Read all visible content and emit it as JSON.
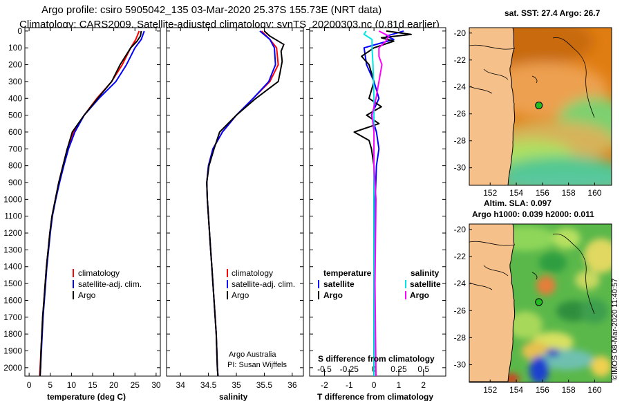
{
  "header": {
    "line1": "Argo profile: csiro 5905042_135 03-Mar-2020 25.37S 155.73E (NRT data)",
    "line2": "Climatology: CARS2009. Satellite-adjusted climatology: synTS_20200303.nc (0.81d earlier)"
  },
  "colors": {
    "climatology": "#ff0000",
    "satellite": "#0000ff",
    "argo": "#000000",
    "sat_sal": "#00e5e5",
    "argo_sal": "#ff00ff",
    "land": "#f5c08a",
    "coast": "#000000"
  },
  "depth_ticks": [
    "0",
    "100",
    "200",
    "300",
    "400",
    "500",
    "600",
    "700",
    "800",
    "900",
    "1000",
    "1100",
    "1200",
    "1300",
    "1400",
    "1500",
    "1600",
    "1700",
    "1800",
    "1900",
    "2000"
  ],
  "chart_data": [
    {
      "type": "line",
      "name": "temperature",
      "xlabel": "temperature (deg C)",
      "xlim": [
        -1,
        31
      ],
      "xticks": [
        "0",
        "5",
        "10",
        "15",
        "20",
        "25",
        "30"
      ],
      "ylim": [
        2050,
        -20
      ],
      "ylabel": "",
      "series": [
        {
          "name": "climatology",
          "points": [
            [
              26.0,
              0
            ],
            [
              25.2,
              50
            ],
            [
              24.0,
              100
            ],
            [
              22.0,
              200
            ],
            [
              19.5,
              300
            ],
            [
              16.0,
              400
            ],
            [
              13.0,
              500
            ],
            [
              10.5,
              600
            ],
            [
              9.0,
              700
            ],
            [
              8.0,
              800
            ],
            [
              7.0,
              900
            ],
            [
              6.2,
              1000
            ],
            [
              5.4,
              1100
            ],
            [
              4.9,
              1200
            ],
            [
              4.5,
              1300
            ],
            [
              4.1,
              1400
            ],
            [
              3.8,
              1500
            ],
            [
              3.5,
              1600
            ],
            [
              3.2,
              1700
            ],
            [
              3.0,
              1800
            ],
            [
              2.8,
              1900
            ],
            [
              2.6,
              2000
            ],
            [
              2.5,
              2050
            ]
          ]
        },
        {
          "name": "satellite-adj. clim.",
          "points": [
            [
              27.2,
              0
            ],
            [
              26.5,
              50
            ],
            [
              25.0,
              100
            ],
            [
              23.0,
              200
            ],
            [
              20.5,
              300
            ],
            [
              16.5,
              400
            ],
            [
              13.0,
              500
            ],
            [
              10.8,
              600
            ],
            [
              9.3,
              700
            ],
            [
              8.2,
              800
            ],
            [
              7.2,
              900
            ],
            [
              6.3,
              1000
            ],
            [
              5.5,
              1100
            ],
            [
              5.0,
              1200
            ],
            [
              4.6,
              1300
            ],
            [
              4.2,
              1400
            ],
            [
              3.9,
              1500
            ],
            [
              3.6,
              1600
            ],
            [
              3.3,
              1700
            ],
            [
              3.1,
              1800
            ],
            [
              2.9,
              1900
            ],
            [
              2.7,
              2000
            ],
            [
              2.6,
              2050
            ]
          ]
        },
        {
          "name": "Argo",
          "points": [
            [
              26.5,
              0
            ],
            [
              26.3,
              30
            ],
            [
              25.5,
              60
            ],
            [
              24.0,
              100
            ],
            [
              21.5,
              200
            ],
            [
              19.5,
              300
            ],
            [
              16.2,
              400
            ],
            [
              13.0,
              500
            ],
            [
              10.2,
              600
            ],
            [
              9.0,
              700
            ],
            [
              8.0,
              800
            ],
            [
              7.0,
              900
            ],
            [
              6.2,
              1000
            ],
            [
              5.4,
              1100
            ],
            [
              4.9,
              1200
            ],
            [
              4.5,
              1300
            ],
            [
              4.1,
              1400
            ],
            [
              3.8,
              1500
            ],
            [
              3.5,
              1600
            ],
            [
              3.2,
              1700
            ],
            [
              3.0,
              1800
            ],
            [
              2.8,
              1900
            ],
            [
              2.7,
              2000
            ],
            [
              2.6,
              2050
            ]
          ]
        }
      ],
      "legend": [
        "climatology",
        "satellite-adj. clim.",
        "Argo"
      ]
    },
    {
      "type": "line",
      "name": "salinity",
      "xlabel": "salinity",
      "xlim": [
        33.75,
        36.2
      ],
      "xticks": [
        "34",
        "34.5",
        "35",
        "35.5",
        "36"
      ],
      "ylim": [
        2050,
        -20
      ],
      "series": [
        {
          "name": "climatology",
          "points": [
            [
              35.45,
              0
            ],
            [
              35.6,
              50
            ],
            [
              35.72,
              100
            ],
            [
              35.75,
              200
            ],
            [
              35.6,
              300
            ],
            [
              35.3,
              400
            ],
            [
              35.0,
              500
            ],
            [
              34.75,
              600
            ],
            [
              34.58,
              700
            ],
            [
              34.5,
              800
            ],
            [
              34.47,
              900
            ],
            [
              34.48,
              1000
            ],
            [
              34.5,
              1100
            ],
            [
              34.52,
              1200
            ],
            [
              34.54,
              1300
            ],
            [
              34.56,
              1400
            ],
            [
              34.58,
              1500
            ],
            [
              34.6,
              1600
            ],
            [
              34.62,
              1700
            ],
            [
              34.64,
              1800
            ],
            [
              34.65,
              1900
            ],
            [
              34.66,
              2000
            ],
            [
              34.67,
              2050
            ]
          ]
        },
        {
          "name": "satellite-adj. clim.",
          "points": [
            [
              35.42,
              0
            ],
            [
              35.6,
              50
            ],
            [
              35.68,
              100
            ],
            [
              35.7,
              200
            ],
            [
              35.58,
              300
            ],
            [
              35.3,
              400
            ],
            [
              35.0,
              500
            ],
            [
              34.75,
              600
            ],
            [
              34.58,
              700
            ],
            [
              34.5,
              800
            ],
            [
              34.47,
              900
            ],
            [
              34.48,
              1000
            ],
            [
              34.5,
              1100
            ],
            [
              34.52,
              1200
            ],
            [
              34.54,
              1300
            ],
            [
              34.56,
              1400
            ],
            [
              34.58,
              1500
            ],
            [
              34.6,
              1600
            ],
            [
              34.62,
              1700
            ],
            [
              34.64,
              1800
            ],
            [
              34.65,
              1900
            ],
            [
              34.66,
              2000
            ],
            [
              34.67,
              2050
            ]
          ]
        },
        {
          "name": "Argo",
          "points": [
            [
              35.5,
              0
            ],
            [
              35.6,
              30
            ],
            [
              35.85,
              80
            ],
            [
              35.8,
              120
            ],
            [
              35.82,
              180
            ],
            [
              35.78,
              250
            ],
            [
              35.75,
              300
            ],
            [
              35.35,
              400
            ],
            [
              35.0,
              500
            ],
            [
              34.7,
              600
            ],
            [
              34.6,
              700
            ],
            [
              34.51,
              800
            ],
            [
              34.47,
              900
            ],
            [
              34.48,
              1000
            ],
            [
              34.5,
              1100
            ],
            [
              34.52,
              1200
            ],
            [
              34.54,
              1300
            ],
            [
              34.56,
              1400
            ],
            [
              34.58,
              1500
            ],
            [
              34.6,
              1600
            ],
            [
              34.62,
              1700
            ],
            [
              34.64,
              1800
            ],
            [
              34.65,
              1900
            ],
            [
              34.66,
              2000
            ],
            [
              34.67,
              2050
            ]
          ]
        }
      ],
      "legend": [
        "climatology",
        "satellite-adj. clim.",
        "Argo"
      ],
      "annotation": [
        "Argo Australia",
        "PI: Susan Wijffels"
      ]
    },
    {
      "type": "line",
      "name": "difference",
      "xlabel": "T difference from climatology",
      "xlim": [
        -2.6,
        2.9
      ],
      "xticks": [
        "-2",
        "-1",
        "0",
        "1",
        "2"
      ],
      "top_xlabel": "S difference from climatology",
      "top_xlim": [
        -0.65,
        0.725
      ],
      "top_xticks": [
        "-0.5",
        "-0.25",
        "0",
        "0.25",
        "0.5"
      ],
      "ylim": [
        2050,
        -20
      ],
      "series": [
        {
          "name": "temperature satellite",
          "axis": "T",
          "points": [
            [
              1.2,
              0
            ],
            [
              0.5,
              30
            ],
            [
              0.8,
              50
            ],
            [
              -0.4,
              100
            ],
            [
              -0.3,
              200
            ],
            [
              0.0,
              300
            ],
            [
              0.2,
              400
            ],
            [
              -0.1,
              500
            ],
            [
              0.1,
              600
            ],
            [
              0.2,
              700
            ],
            [
              0.1,
              800
            ],
            [
              0.05,
              1000
            ],
            [
              0.0,
              1500
            ],
            [
              0.0,
              2050
            ]
          ]
        },
        {
          "name": "temperature Argo",
          "axis": "T",
          "points": [
            [
              0.5,
              0
            ],
            [
              1.5,
              20
            ],
            [
              0.3,
              40
            ],
            [
              0.8,
              60
            ],
            [
              0.0,
              100
            ],
            [
              -0.5,
              150
            ],
            [
              -0.2,
              200
            ],
            [
              0.0,
              300
            ],
            [
              -0.2,
              400
            ],
            [
              0.3,
              450
            ],
            [
              -0.3,
              500
            ],
            [
              0.2,
              550
            ],
            [
              -0.8,
              600
            ],
            [
              -0.2,
              650
            ],
            [
              -0.1,
              700
            ],
            [
              0.0,
              800
            ],
            [
              0.0,
              1000
            ],
            [
              0.0,
              1500
            ],
            [
              0.0,
              2050
            ]
          ]
        },
        {
          "name": "salinity satellite",
          "axis": "S",
          "points": [
            [
              -0.08,
              0
            ],
            [
              -0.1,
              20
            ],
            [
              -0.02,
              50
            ],
            [
              -0.02,
              100
            ],
            [
              -0.01,
              200
            ],
            [
              0.0,
              400
            ],
            [
              0.0,
              800
            ],
            [
              0.0,
              1500
            ],
            [
              0.0,
              2050
            ]
          ]
        },
        {
          "name": "salinity Argo",
          "axis": "S",
          "points": [
            [
              0.05,
              0
            ],
            [
              0.15,
              30
            ],
            [
              0.12,
              60
            ],
            [
              0.05,
              100
            ],
            [
              0.05,
              150
            ],
            [
              0.08,
              200
            ],
            [
              0.05,
              300
            ],
            [
              0.02,
              400
            ],
            [
              -0.02,
              500
            ],
            [
              0.0,
              600
            ],
            [
              0.0,
              800
            ],
            [
              0.02,
              1000
            ],
            [
              0.01,
              1500
            ],
            [
              0.02,
              2050
            ]
          ]
        }
      ],
      "legend_temperature_title": "temperature",
      "legend_salinity_title": "salinity",
      "legend_items": [
        "satellite",
        "Argo"
      ]
    }
  ],
  "maps": {
    "sst": {
      "title": "sat. SST: 27.4 Argo: 26.7",
      "lat_ticks": [
        "-20",
        "-22",
        "-24",
        "-26",
        "-28",
        "-30"
      ],
      "lon_ticks": [
        "152",
        "154",
        "156",
        "158",
        "160"
      ],
      "float_lon": 155.73,
      "float_lat": -25.37,
      "lon_range": [
        150.4,
        161.3
      ],
      "lat_range": [
        -31.3,
        -19.6
      ]
    },
    "sla": {
      "title_line1": "Altim. SLA: 0.097",
      "title_line2": "Argo h1000: 0.039 h2000: 0.011",
      "lat_ticks": [
        "-20",
        "-22",
        "-24",
        "-26",
        "-28",
        "-30"
      ],
      "lon_ticks": [
        "152",
        "154",
        "156",
        "158",
        "160"
      ],
      "float_lon": 155.73,
      "float_lat": -25.37,
      "lon_range": [
        150.4,
        161.3
      ],
      "lat_range": [
        -31.3,
        -19.6
      ]
    }
  },
  "credit": "©IMOS 08-Mar-2020 11:40:57"
}
